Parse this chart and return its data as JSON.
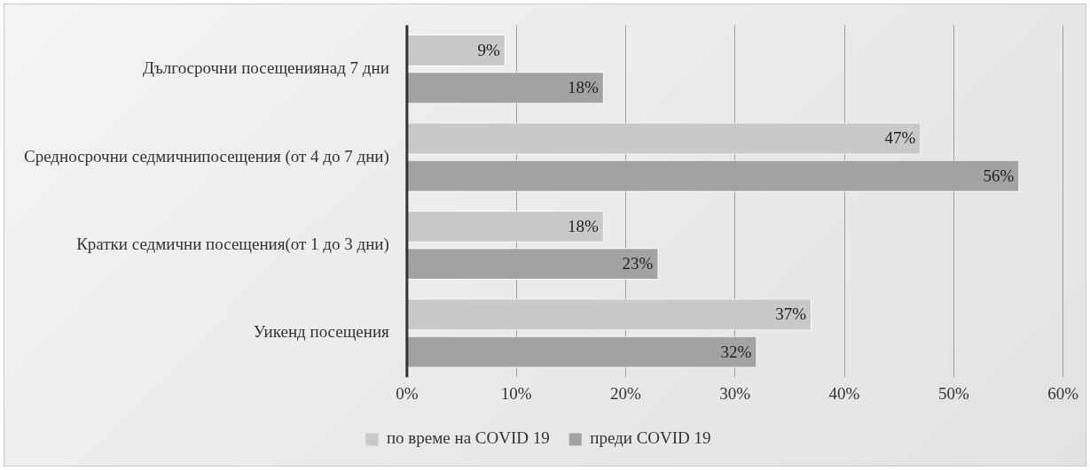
{
  "chart_data": {
    "type": "bar",
    "orientation": "horizontal",
    "categories": [
      "Дългосрочни посещениянад 7 дни",
      "Средносрочни седмичнипосещения (от 4 до 7 дни)",
      "Кратки седмични посещения(от 1 до 3 дни)",
      "Уикенд посещения"
    ],
    "series": [
      {
        "name": "по време на COVID 19",
        "color": "#c9c9c9",
        "values": [
          9,
          47,
          18,
          37
        ],
        "value_labels": [
          "9%",
          "47%",
          "18%",
          "37%"
        ]
      },
      {
        "name": "преди COVID 19",
        "color": "#a3a3a3",
        "values": [
          18,
          56,
          23,
          32
        ],
        "value_labels": [
          "18%",
          "56%",
          "23%",
          "32%"
        ]
      }
    ],
    "xlim": [
      0,
      60
    ],
    "xticks": [
      {
        "value": 0,
        "label": "0%"
      },
      {
        "value": 10,
        "label": "10%"
      },
      {
        "value": 20,
        "label": "20%"
      },
      {
        "value": 30,
        "label": "30%"
      },
      {
        "value": 40,
        "label": "40%"
      },
      {
        "value": 50,
        "label": "50%"
      },
      {
        "value": 60,
        "label": "60%"
      }
    ],
    "grid": "x",
    "legend": "bottom"
  }
}
